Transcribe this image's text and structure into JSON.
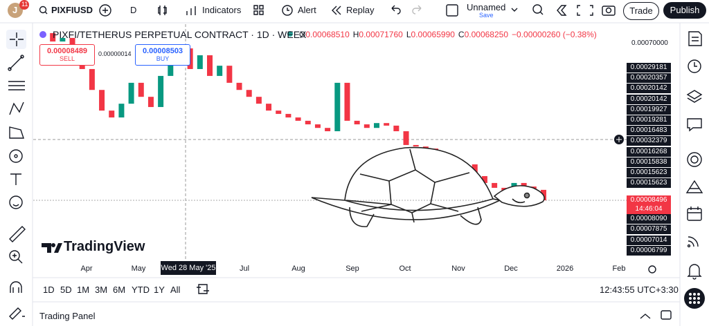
{
  "toolbar": {
    "avatar": "J",
    "badge": "11",
    "symbol": "PIXFIUSD",
    "interval": "D",
    "indicators": "Indicators",
    "alert": "Alert",
    "replay": "Replay",
    "layout_name": "Unnamed",
    "save": "Save",
    "trade": "Trade",
    "publish": "Publish"
  },
  "legend": {
    "title": "PIXFI/TETHERUS PERPETUAL CONTRACT · 1D · WEEX",
    "ohlc": [
      {
        "label": "O",
        "value": "0.00068510"
      },
      {
        "label": "H",
        "value": "0.00071760"
      },
      {
        "label": "L",
        "value": "0.00065990"
      },
      {
        "label": "C",
        "value": "0.00068250"
      }
    ],
    "change": "−0.00000260 (−0.38%)"
  },
  "order": {
    "sell_price": "0.00008489",
    "sell": "SELL",
    "spread": "0.00000014",
    "buy_price": "0.00008503",
    "buy": "BUY"
  },
  "price_axis": {
    "top": "0.00070000",
    "alert_labels": [
      "0.00029181",
      "0.00020357",
      "0.00020142",
      "0.00020142",
      "0.00019927",
      "0.00019281",
      "0.00016483",
      "0.00032379",
      "0.00016268",
      "0.00015838",
      "0.00015623",
      "0.00015623"
    ],
    "current": "0.00008496",
    "countdown": "14:46:04",
    "lower_labels": [
      "0.00008090",
      "0.00007875",
      "0.00007014",
      "0.00006799"
    ]
  },
  "time_axis": {
    "labels": [
      "Apr",
      "May",
      "Jul",
      "Aug",
      "Sep",
      "Oct",
      "Nov",
      "Dec",
      "2026",
      "Feb"
    ],
    "crosshair": "Wed 28 May '25"
  },
  "chart": {
    "ylim": [
      -0.000213,
      0.000776
    ],
    "closes": [
      0.000741,
      0.000708,
      0.000722,
      0.000654,
      0.0006,
      0.000518,
      0.000437,
      0.00041,
      0.000464,
      0.000546,
      0.000491,
      0.000451,
      0.000573,
      0.000627,
      0.000681,
      0.0006,
      0.000654,
      0.000573,
      0.000613,
      0.000546,
      0.000518,
      0.000491,
      0.000464,
      0.000437,
      0.000424,
      0.00041,
      0.000397,
      0.000383,
      0.000369,
      0.000356,
      0.000546,
      0.000397,
      0.000383,
      0.000369,
      0.000388,
      0.000378,
      0.000356,
      0.000302,
      0.000296,
      0.000288,
      0.000261,
      0.000234,
      0.00022,
      0.000226,
      0.00018,
      0.000153,
      0.000134,
      0.000112,
      0.000153,
      0.000139,
      0.000126,
      8.5e-05
    ]
  },
  "ranges": [
    "1D",
    "5D",
    "1M",
    "3M",
    "6M",
    "YTD",
    "1Y",
    "All"
  ],
  "clock": "12:43:55 UTC+3:30",
  "brand": "TradingView",
  "trading_panel": "Trading Panel"
}
